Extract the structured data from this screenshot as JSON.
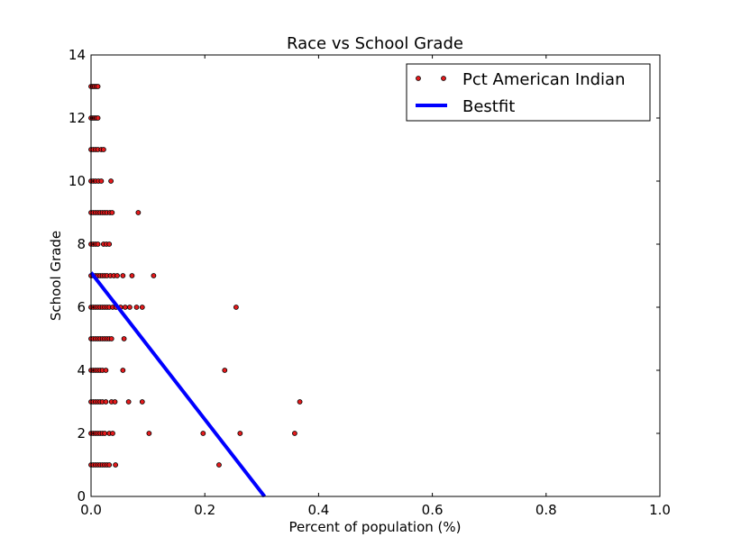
{
  "chart_data": {
    "type": "scatter",
    "title": "Race vs School Grade",
    "xlabel": "Percent of population (%)",
    "ylabel": "School Grade",
    "xlim": [
      0,
      1
    ],
    "ylim": [
      0,
      14
    ],
    "xticks": [
      "0.0",
      "0.2",
      "0.4",
      "0.6",
      "0.8",
      "1.0"
    ],
    "yticks": [
      "0",
      "2",
      "4",
      "6",
      "8",
      "10",
      "12",
      "14"
    ],
    "grid": false,
    "legend_position": "top-right",
    "colors": {
      "points": "#e41a1c",
      "point_edge": "#000000",
      "fit_line": "#0000ff"
    },
    "series": [
      {
        "name": "Pct American Indian",
        "kind": "scatter",
        "points": [
          [
            0.0,
            13
          ],
          [
            0.003,
            13
          ],
          [
            0.006,
            13
          ],
          [
            0.009,
            13
          ],
          [
            0.012,
            13
          ],
          [
            0.0,
            12
          ],
          [
            0.003,
            12
          ],
          [
            0.006,
            12
          ],
          [
            0.009,
            12
          ],
          [
            0.012,
            12
          ],
          [
            0.0,
            11
          ],
          [
            0.004,
            11
          ],
          [
            0.008,
            11
          ],
          [
            0.012,
            11
          ],
          [
            0.018,
            11
          ],
          [
            0.022,
            11
          ],
          [
            0.0,
            10
          ],
          [
            0.004,
            10
          ],
          [
            0.008,
            10
          ],
          [
            0.013,
            10
          ],
          [
            0.018,
            10
          ],
          [
            0.035,
            10
          ],
          [
            0.0,
            9
          ],
          [
            0.004,
            9
          ],
          [
            0.008,
            9
          ],
          [
            0.012,
            9
          ],
          [
            0.016,
            9
          ],
          [
            0.02,
            9
          ],
          [
            0.024,
            9
          ],
          [
            0.028,
            9
          ],
          [
            0.033,
            9
          ],
          [
            0.037,
            9
          ],
          [
            0.083,
            9
          ],
          [
            0.0,
            8
          ],
          [
            0.004,
            8
          ],
          [
            0.008,
            8
          ],
          [
            0.012,
            8
          ],
          [
            0.022,
            8
          ],
          [
            0.027,
            8
          ],
          [
            0.032,
            8
          ],
          [
            0.0,
            7
          ],
          [
            0.004,
            7
          ],
          [
            0.008,
            7
          ],
          [
            0.012,
            7
          ],
          [
            0.016,
            7
          ],
          [
            0.02,
            7
          ],
          [
            0.024,
            7
          ],
          [
            0.028,
            7
          ],
          [
            0.034,
            7
          ],
          [
            0.04,
            7
          ],
          [
            0.046,
            7
          ],
          [
            0.056,
            7
          ],
          [
            0.072,
            7
          ],
          [
            0.11,
            7
          ],
          [
            0.0,
            6
          ],
          [
            0.004,
            6
          ],
          [
            0.008,
            6
          ],
          [
            0.012,
            6
          ],
          [
            0.016,
            6
          ],
          [
            0.02,
            6
          ],
          [
            0.024,
            6
          ],
          [
            0.028,
            6
          ],
          [
            0.032,
            6
          ],
          [
            0.038,
            6
          ],
          [
            0.044,
            6
          ],
          [
            0.052,
            6
          ],
          [
            0.06,
            6
          ],
          [
            0.068,
            6
          ],
          [
            0.08,
            6
          ],
          [
            0.09,
            6
          ],
          [
            0.255,
            6
          ],
          [
            0.0,
            5
          ],
          [
            0.004,
            5
          ],
          [
            0.008,
            5
          ],
          [
            0.012,
            5
          ],
          [
            0.016,
            5
          ],
          [
            0.02,
            5
          ],
          [
            0.024,
            5
          ],
          [
            0.028,
            5
          ],
          [
            0.032,
            5
          ],
          [
            0.036,
            5
          ],
          [
            0.058,
            5
          ],
          [
            0.0,
            4
          ],
          [
            0.004,
            4
          ],
          [
            0.008,
            4
          ],
          [
            0.012,
            4
          ],
          [
            0.016,
            4
          ],
          [
            0.02,
            4
          ],
          [
            0.026,
            4
          ],
          [
            0.056,
            4
          ],
          [
            0.235,
            4
          ],
          [
            0.0,
            3
          ],
          [
            0.004,
            3
          ],
          [
            0.008,
            3
          ],
          [
            0.012,
            3
          ],
          [
            0.016,
            3
          ],
          [
            0.02,
            3
          ],
          [
            0.026,
            3
          ],
          [
            0.036,
            3
          ],
          [
            0.042,
            3
          ],
          [
            0.066,
            3
          ],
          [
            0.09,
            3
          ],
          [
            0.367,
            3
          ],
          [
            0.0,
            2
          ],
          [
            0.004,
            2
          ],
          [
            0.008,
            2
          ],
          [
            0.012,
            2
          ],
          [
            0.016,
            2
          ],
          [
            0.02,
            2
          ],
          [
            0.024,
            2
          ],
          [
            0.032,
            2
          ],
          [
            0.038,
            2
          ],
          [
            0.102,
            2
          ],
          [
            0.197,
            2
          ],
          [
            0.262,
            2
          ],
          [
            0.358,
            2
          ],
          [
            0.0,
            1
          ],
          [
            0.004,
            1
          ],
          [
            0.008,
            1
          ],
          [
            0.012,
            1
          ],
          [
            0.016,
            1
          ],
          [
            0.02,
            1
          ],
          [
            0.024,
            1
          ],
          [
            0.028,
            1
          ],
          [
            0.032,
            1
          ],
          [
            0.043,
            1
          ],
          [
            0.225,
            1
          ]
        ]
      },
      {
        "name": "Bestfit",
        "kind": "line",
        "points": [
          [
            0.0,
            7.1
          ],
          [
            0.305,
            0.0
          ]
        ]
      }
    ]
  }
}
